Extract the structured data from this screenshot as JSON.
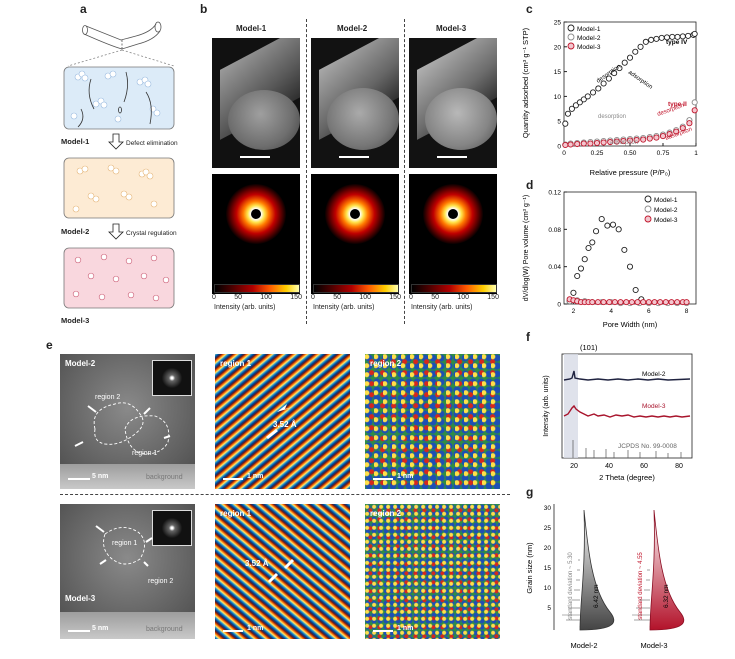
{
  "panel_letters": {
    "a": "a",
    "b": "b",
    "c": "c",
    "d": "d",
    "e": "e",
    "f": "f",
    "g": "g"
  },
  "panel_a": {
    "models": [
      "Model-1",
      "Model-2",
      "Model-3"
    ],
    "arrows": [
      "Defect elimination",
      "Crystal regulation"
    ]
  },
  "panel_b": {
    "headers": [
      "Model-1",
      "Model-2",
      "Model-3"
    ],
    "colorbar_ticks": [
      "0",
      "50",
      "100",
      "150"
    ],
    "colorbar_label": "Intensity (arb. units)"
  },
  "panel_c": {
    "ylabel": "Quantity adsorbed (cm³ g⁻¹ STP)",
    "xlabel": "Relative pressure (P/P₀)",
    "legend": [
      "Model-1",
      "Model-2",
      "Model-3"
    ],
    "type4": "type IV",
    "type2": "type II",
    "annot_black": [
      "desorption",
      "adsorption"
    ],
    "annot_gray": [
      "desorption",
      "adsorption"
    ],
    "annot_red": [
      "desorption",
      "adsorption"
    ],
    "xticks": [
      "0",
      "0.25",
      "0.50",
      "0.75",
      "1"
    ],
    "yticks": [
      "0",
      "5",
      "10",
      "15",
      "20",
      "25"
    ]
  },
  "panel_d": {
    "ylabel": "dV/dlog(W) Pore volume (cm³ g⁻¹)",
    "xlabel": "Pore Width (nm)",
    "legend": [
      "Model-1",
      "Model-2",
      "Model-3"
    ],
    "xticks": [
      "2",
      "4",
      "6",
      "8"
    ],
    "yticks": [
      "0",
      "0.04",
      "0.08",
      "0.12"
    ]
  },
  "panel_e": {
    "labels": {
      "top_model": "Model-2",
      "bottom_model": "Model-3",
      "region1": "region 1",
      "region2": "region 2",
      "scale5": "5 nm",
      "scale1": "1 nm",
      "background": "background",
      "spacing": "3.52 Å"
    }
  },
  "panel_f": {
    "peak": "(101)",
    "series": [
      "Model-2",
      "Model-3"
    ],
    "ref": "JCPDS No. 99-0008",
    "ylabel": "Intensity (arb. units)",
    "xlabel": "2 Theta (degree)",
    "xticks": [
      "20",
      "40",
      "60",
      "80"
    ]
  },
  "panel_g": {
    "ylabel": "Grain size (nm)",
    "yticks": [
      "5",
      "10",
      "15",
      "20",
      "25",
      "30"
    ],
    "sd2": "standard deviation ~ 5.30",
    "sd3": "standard deviation ~ 4.55",
    "mean2": "6.42 nm",
    "mean3": "6.32 nm",
    "xlabels": [
      "Model-2",
      "Model-3"
    ]
  },
  "chart_data": [
    {
      "type": "scatter",
      "panel": "c",
      "xlabel": "Relative pressure (P/P₀)",
      "ylabel": "Quantity adsorbed (cm³ g⁻¹ STP)",
      "xlim": [
        0,
        1
      ],
      "ylim": [
        0,
        25
      ],
      "series": [
        {
          "name": "Model-1",
          "color": "#222222",
          "x": [
            0.01,
            0.03,
            0.06,
            0.09,
            0.12,
            0.15,
            0.18,
            0.22,
            0.26,
            0.3,
            0.34,
            0.38,
            0.42,
            0.46,
            0.5,
            0.54,
            0.58,
            0.62,
            0.66,
            0.7,
            0.74,
            0.78,
            0.82,
            0.86,
            0.9,
            0.94,
            0.98,
            0.99
          ],
          "y": [
            4.5,
            6.5,
            7.5,
            8.2,
            8.8,
            9.4,
            10,
            10.8,
            11.6,
            12.6,
            13.6,
            14.7,
            15.7,
            16.8,
            17.8,
            19.0,
            20.0,
            21.0,
            21.4,
            21.6,
            21.8,
            21.9,
            22.0,
            22.0,
            22.1,
            22.2,
            22.4,
            22.6
          ]
        },
        {
          "name": "Model-2",
          "color": "#8a8a8a",
          "x": [
            0.01,
            0.05,
            0.1,
            0.15,
            0.2,
            0.25,
            0.3,
            0.35,
            0.4,
            0.45,
            0.5,
            0.55,
            0.6,
            0.65,
            0.7,
            0.75,
            0.8,
            0.85,
            0.9,
            0.95,
            0.99
          ],
          "y": [
            0.3,
            0.5,
            0.6,
            0.7,
            0.8,
            0.9,
            1.0,
            1.1,
            1.2,
            1.3,
            1.4,
            1.5,
            1.6,
            1.8,
            2.0,
            2.3,
            2.7,
            3.2,
            3.9,
            5.2,
            8.8
          ]
        },
        {
          "name": "Model-3",
          "color": "#c0162c",
          "x": [
            0.01,
            0.05,
            0.1,
            0.15,
            0.2,
            0.25,
            0.3,
            0.35,
            0.4,
            0.45,
            0.5,
            0.55,
            0.6,
            0.65,
            0.7,
            0.75,
            0.8,
            0.85,
            0.9,
            0.95,
            0.99
          ],
          "y": [
            0.2,
            0.3,
            0.4,
            0.5,
            0.5,
            0.6,
            0.7,
            0.8,
            0.9,
            1.0,
            1.1,
            1.2,
            1.3,
            1.5,
            1.7,
            2.0,
            2.4,
            2.9,
            3.6,
            4.6,
            7.2
          ]
        }
      ]
    },
    {
      "type": "scatter",
      "panel": "d",
      "xlabel": "Pore Width (nm)",
      "ylabel": "dV/dlog(W) Pore volume (cm³ g⁻¹)",
      "xlim": [
        1.5,
        8.5
      ],
      "ylim": [
        0,
        0.12
      ],
      "series": [
        {
          "name": "Model-1",
          "color": "#222222",
          "x": [
            1.8,
            2.0,
            2.2,
            2.4,
            2.6,
            2.8,
            3.0,
            3.2,
            3.5,
            3.8,
            4.1,
            4.4,
            4.7,
            5.0,
            5.3,
            5.6
          ],
          "y": [
            0.003,
            0.012,
            0.03,
            0.038,
            0.048,
            0.06,
            0.066,
            0.078,
            0.091,
            0.084,
            0.085,
            0.08,
            0.058,
            0.04,
            0.015,
            0.005
          ]
        },
        {
          "name": "Model-2",
          "color": "#8a8a8a",
          "x": [
            1.8,
            2.2,
            2.6,
            3.0,
            3.5,
            4.0,
            4.5,
            5.0,
            5.5,
            6.0,
            6.5,
            7.0,
            7.5,
            8.0
          ],
          "y": [
            0.003,
            0.004,
            0.003,
            0.002,
            0.002,
            0.002,
            0.001,
            0.001,
            0.001,
            0.001,
            0.001,
            0.001,
            0.001,
            0.001
          ]
        },
        {
          "name": "Model-3",
          "color": "#c0162c",
          "x": [
            1.8,
            2.0,
            2.2,
            2.4,
            2.6,
            2.8,
            3.0,
            3.3,
            3.6,
            3.9,
            4.2,
            4.5,
            4.8,
            5.1,
            5.4,
            5.7,
            6.0,
            6.3,
            6.6,
            6.9,
            7.2,
            7.5,
            7.8,
            8.0
          ],
          "y": [
            0.005,
            0.004,
            0.003,
            0.002,
            0.002,
            0.002,
            0.002,
            0.002,
            0.002,
            0.002,
            0.002,
            0.002,
            0.002,
            0.002,
            0.002,
            0.002,
            0.002,
            0.002,
            0.002,
            0.002,
            0.002,
            0.002,
            0.002,
            0.002
          ]
        }
      ]
    }
  ]
}
